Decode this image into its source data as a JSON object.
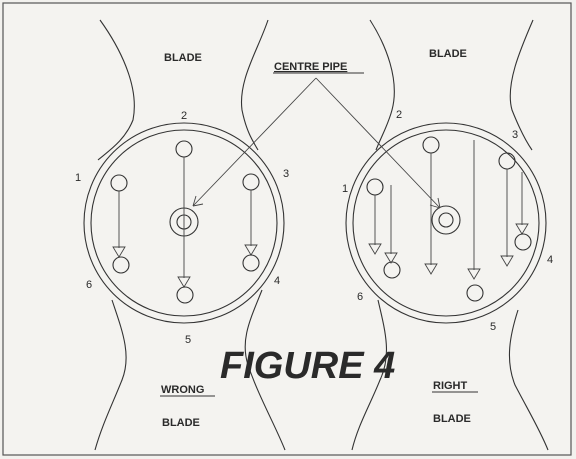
{
  "figure_title": "FIGURE 4",
  "labels": {
    "blade_top_left": "BLADE",
    "blade_top_right": "BLADE",
    "centre_pipe": "CENTRE PIPE",
    "wrong": "WRONG",
    "blade_bottom_left": "BLADE",
    "right": "RIGHT",
    "blade_bottom_right": "BLADE"
  },
  "left_numbers": [
    "1",
    "2",
    "3",
    "4",
    "5",
    "6"
  ],
  "right_numbers": [
    "1",
    "2",
    "3",
    "4",
    "5",
    "6"
  ]
}
